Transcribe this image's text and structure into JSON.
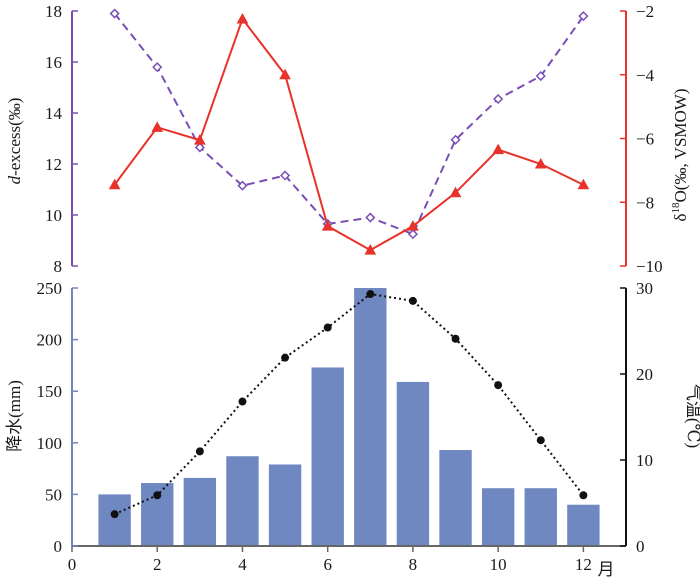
{
  "chart_data": [
    {
      "type": "line",
      "panel": "upper",
      "x": [
        1,
        2,
        3,
        4,
        5,
        6,
        7,
        8,
        9,
        10,
        11,
        12
      ],
      "series": [
        {
          "axis": "left",
          "style": "dashed",
          "marker": "open-diamond",
          "color": "#7a4fb5",
          "values": [
            17.9,
            15.8,
            12.65,
            11.15,
            11.55,
            9.65,
            9.9,
            9.25,
            12.95,
            14.55,
            15.45,
            17.8
          ]
        },
        {
          "axis": "right",
          "style": "solid",
          "marker": "filled-triangle",
          "color": "#e8322b",
          "values": [
            -7.45,
            -5.65,
            -6.05,
            -2.25,
            -4.0,
            -8.75,
            -9.5,
            -8.75,
            -7.7,
            -6.35,
            -6.8,
            -7.45
          ]
        }
      ],
      "left_axis": {
        "label_italic": "d",
        "label_rest": "-excess(‰)",
        "ylim": [
          8,
          18
        ],
        "ticks": [
          "8",
          "10",
          "12",
          "14",
          "16",
          "18"
        ],
        "color": "#7a4fb5"
      },
      "right_axis": {
        "label_delta": "δ",
        "label_sup": "18",
        "label_rest": "O(‰, VSMOW)",
        "ylim": [
          -10,
          -2
        ],
        "ticks": [
          "−10",
          "−8",
          "−6",
          "−4",
          "−2"
        ],
        "color": "#e8322b"
      }
    },
    {
      "type": "bar",
      "panel": "lower",
      "categories": [
        1,
        2,
        3,
        4,
        5,
        6,
        7,
        8,
        9,
        10,
        11,
        12
      ],
      "values": [
        50,
        61,
        66,
        87,
        79,
        173,
        250,
        159,
        93,
        56,
        56,
        40
      ],
      "bar_color": "#7088c1",
      "left_axis": {
        "label": "降水(mm)",
        "ylim": [
          0,
          250
        ],
        "ticks": [
          "0",
          "50",
          "100",
          "150",
          "200",
          "250"
        ],
        "color": "#7088c1"
      },
      "overlay": {
        "type": "line",
        "style": "dotted",
        "marker": "filled-circle",
        "color": "#111111",
        "axis": "right",
        "values": [
          3.7,
          5.9,
          11.0,
          16.8,
          21.9,
          25.4,
          29.3,
          28.5,
          24.1,
          18.7,
          12.3,
          5.9
        ]
      },
      "right_axis": {
        "label": "气温(℃)",
        "ylim": [
          0,
          30
        ],
        "ticks": [
          "0",
          "10",
          "20",
          "30"
        ],
        "color": "#111111"
      },
      "x_axis": {
        "xlim": [
          0,
          13
        ],
        "ticks": [
          "0",
          "2",
          "4",
          "6",
          "8",
          "10",
          "12"
        ],
        "unit_label": "月"
      }
    }
  ]
}
